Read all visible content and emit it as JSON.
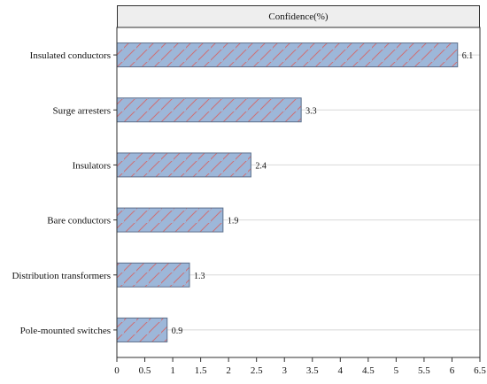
{
  "chart_data": {
    "type": "bar",
    "orientation": "horizontal",
    "title": "Confidence(%)",
    "xlabel": "",
    "ylabel": "",
    "categories": [
      "Insulated conductors",
      "Surge arresters",
      "Insulators",
      "Bare conductors",
      "Distribution transformers",
      "Pole-mounted switches"
    ],
    "values": [
      6.1,
      3.3,
      2.4,
      1.9,
      1.3,
      0.9
    ],
    "data_labels": [
      "6.1",
      "3.3",
      "2.4",
      "1.9",
      "1.3",
      "0.9"
    ],
    "xlim": [
      0,
      6.5
    ],
    "xticks": [
      0,
      0.5,
      1,
      1.5,
      2,
      2.5,
      3,
      3.5,
      4,
      4.5,
      5,
      5.5,
      6,
      6.5
    ],
    "xtick_labels": [
      "0",
      "0.5",
      "1",
      "1.5",
      "2",
      "2.5",
      "3",
      "3.5",
      "4",
      "4.5",
      "5",
      "5.5",
      "6",
      "6.5"
    ],
    "grid": "horizontal",
    "legend": "none",
    "colors": {
      "bar_fill": "#9db7d9",
      "bar_stroke": "#5b6f8b",
      "hatch": "#cf6f74",
      "grid": "#d8d8d8",
      "panel_header": "#eeeeee",
      "axis": "#2f2f2f"
    }
  }
}
